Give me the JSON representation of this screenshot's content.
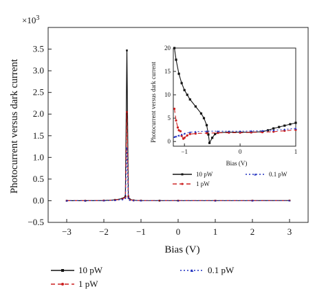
{
  "chart_data": [
    {
      "type": "line",
      "xlabel": "Bias (V)",
      "ylabel": "Photocurrent versus dark current",
      "y_multiplier_label": "×10",
      "y_multiplier_exp": "3",
      "xlim": [
        -3.5,
        3.5
      ],
      "ylim": [
        -0.5,
        4.0
      ],
      "x_ticks": [
        -3,
        -2,
        -1,
        0,
        1,
        2,
        3
      ],
      "x_tick_labels": [
        "−3",
        "−2",
        "−1",
        "0",
        "1",
        "2",
        "3"
      ],
      "y_ticks": [
        -0.5,
        0.0,
        0.5,
        1.0,
        1.5,
        2.0,
        2.5,
        3.0,
        3.5
      ],
      "y_tick_labels": [
        "−0.5",
        "0.0",
        "0.5",
        "1.0",
        "1.5",
        "2.0",
        "2.5",
        "3.0",
        "3.5"
      ],
      "legend_position": "bottom",
      "series": [
        {
          "name": "10 pW",
          "color": "#111111",
          "dash": "solid",
          "marker": "square",
          "points": [
            [
              -3.0,
              0.0
            ],
            [
              -2.5,
              0.0
            ],
            [
              -2.0,
              0.005
            ],
            [
              -1.7,
              0.02
            ],
            [
              -1.5,
              0.05
            ],
            [
              -1.42,
              0.1
            ],
            [
              -1.38,
              3.47
            ],
            [
              -1.34,
              0.1
            ],
            [
              -1.3,
              0.03
            ],
            [
              -1.2,
              0.01
            ],
            [
              -1.0,
              0.004
            ],
            [
              -0.5,
              0.002
            ],
            [
              0.0,
              0.002
            ],
            [
              1.0,
              0.002
            ],
            [
              2.0,
              0.003
            ],
            [
              3.0,
              0.004
            ]
          ]
        },
        {
          "name": "1 pW",
          "color": "#cc1f1f",
          "dash": "6,4",
          "marker": "circle",
          "points": [
            [
              -3.0,
              0.0
            ],
            [
              -2.5,
              0.0
            ],
            [
              -2.0,
              0.004
            ],
            [
              -1.7,
              0.015
            ],
            [
              -1.5,
              0.04
            ],
            [
              -1.42,
              0.08
            ],
            [
              -1.38,
              2.05
            ],
            [
              -1.34,
              0.08
            ],
            [
              -1.3,
              0.02
            ],
            [
              -1.2,
              0.008
            ],
            [
              -1.0,
              0.003
            ],
            [
              0.0,
              0.002
            ],
            [
              1.0,
              0.002
            ],
            [
              2.0,
              0.002
            ],
            [
              3.0,
              0.003
            ]
          ]
        },
        {
          "name": "0.1 pW",
          "color": "#1f2fbf",
          "dash": "2,3",
          "marker": "triangle",
          "points": [
            [
              -3.0,
              0.0
            ],
            [
              -2.5,
              0.0
            ],
            [
              -2.0,
              0.003
            ],
            [
              -1.7,
              0.01
            ],
            [
              -1.5,
              0.03
            ],
            [
              -1.42,
              0.06
            ],
            [
              -1.38,
              1.22
            ],
            [
              -1.34,
              0.06
            ],
            [
              -1.3,
              0.015
            ],
            [
              -1.2,
              0.006
            ],
            [
              -1.0,
              0.002
            ],
            [
              0.0,
              0.002
            ],
            [
              1.0,
              0.002
            ],
            [
              2.0,
              0.002
            ],
            [
              3.0,
              0.002
            ]
          ]
        }
      ]
    },
    {
      "type": "line",
      "xlabel": "Bias (V)",
      "ylabel": "Photocurrent versus dark current",
      "xlim": [
        -1.2,
        1.0
      ],
      "ylim": [
        -1,
        20
      ],
      "x_ticks": [
        -1,
        0,
        1
      ],
      "x_tick_labels": [
        "−1",
        "0",
        "1"
      ],
      "y_ticks": [
        0,
        5,
        10,
        15,
        20
      ],
      "y_tick_labels": [
        "0",
        "5",
        "10",
        "15",
        "20"
      ],
      "legend_position": "bottom",
      "series": [
        {
          "name": "10 pW",
          "color": "#111111",
          "dash": "solid",
          "marker": "square",
          "points": [
            [
              -1.18,
              20.0
            ],
            [
              -1.15,
              17.5
            ],
            [
              -1.1,
              14.5
            ],
            [
              -1.05,
              12.5
            ],
            [
              -1.0,
              11.0
            ],
            [
              -0.95,
              10.0
            ],
            [
              -0.9,
              9.0
            ],
            [
              -0.8,
              7.5
            ],
            [
              -0.7,
              6.0
            ],
            [
              -0.65,
              5.0
            ],
            [
              -0.6,
              3.5
            ],
            [
              -0.57,
              1.5
            ],
            [
              -0.55,
              -0.3
            ],
            [
              -0.5,
              0.8
            ],
            [
              -0.45,
              1.6
            ],
            [
              -0.4,
              1.9
            ],
            [
              -0.2,
              2.0
            ],
            [
              0.0,
              2.0
            ],
            [
              0.2,
              2.0
            ],
            [
              0.4,
              2.1
            ],
            [
              0.5,
              2.4
            ],
            [
              0.6,
              2.8
            ],
            [
              0.7,
              3.1
            ],
            [
              0.8,
              3.4
            ],
            [
              0.9,
              3.7
            ],
            [
              1.0,
              4.0
            ]
          ]
        },
        {
          "name": "1 pW",
          "color": "#cc1f1f",
          "dash": "6,4",
          "marker": "circle",
          "points": [
            [
              -1.18,
              7.0
            ],
            [
              -1.15,
              4.5
            ],
            [
              -1.12,
              3.0
            ],
            [
              -1.1,
              2.4
            ],
            [
              -1.07,
              2.2
            ],
            [
              -1.05,
              1.2
            ],
            [
              -1.02,
              0.6
            ],
            [
              -1.0,
              0.8
            ],
            [
              -0.95,
              1.3
            ],
            [
              -0.9,
              1.6
            ],
            [
              -0.8,
              1.7
            ],
            [
              -0.6,
              1.8
            ],
            [
              -0.4,
              1.85
            ],
            [
              -0.2,
              1.9
            ],
            [
              0.0,
              1.9
            ],
            [
              0.2,
              1.95
            ],
            [
              0.4,
              2.0
            ],
            [
              0.6,
              2.1
            ],
            [
              0.8,
              2.3
            ],
            [
              1.0,
              2.5
            ]
          ]
        },
        {
          "name": "0.1 pW",
          "color": "#1f2fbf",
          "dash": "2,3",
          "marker": "triangle",
          "points": [
            [
              -1.18,
              1.0
            ],
            [
              -1.15,
              1.1
            ],
            [
              -1.1,
              1.3
            ],
            [
              -1.05,
              1.5
            ],
            [
              -1.0,
              1.7
            ],
            [
              -0.9,
              2.0
            ],
            [
              -0.8,
              2.1
            ],
            [
              -0.6,
              2.2
            ],
            [
              -0.4,
              2.2
            ],
            [
              -0.2,
              2.2
            ],
            [
              0.0,
              2.2
            ],
            [
              0.2,
              2.25
            ],
            [
              0.4,
              2.3
            ],
            [
              0.6,
              2.4
            ],
            [
              0.8,
              2.6
            ],
            [
              1.0,
              2.8
            ]
          ]
        }
      ]
    }
  ]
}
